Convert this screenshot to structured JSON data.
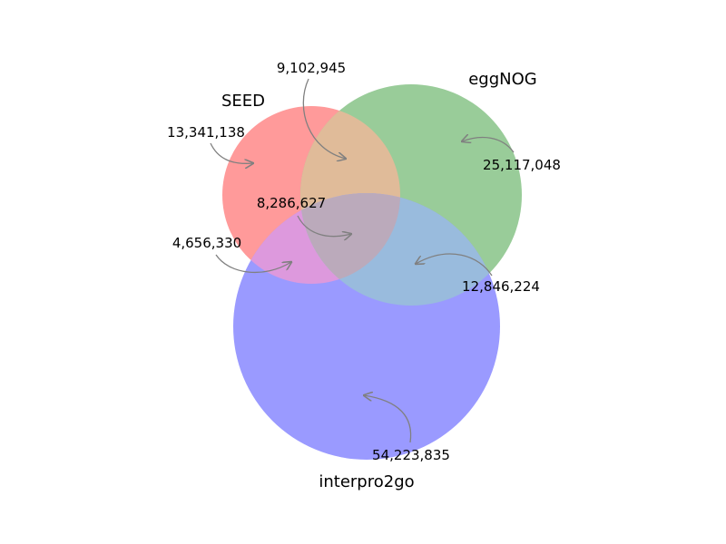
{
  "sets": [
    {
      "name": "SEED",
      "color": "#ff9a9a"
    },
    {
      "name": "eggNOG",
      "color": "#99cc99"
    },
    {
      "name": "interpro2go",
      "color": "#9a9aff"
    }
  ],
  "regions": {
    "seed_only": "13,341,138",
    "seed_eggnog": "9,102,945",
    "eggnog_only": "25,117,048",
    "all_three": "8,286,627",
    "seed_interpro": "4,656,330",
    "eggnog_interpro": "12,846,224",
    "interpro_only": "54,223,835"
  },
  "region_colors": {
    "seed_eggnog": "#e0bb99",
    "seed_interpro": "#dd99dd",
    "eggnog_interpro": "#99bbdd",
    "all_three": "#bbaabb"
  },
  "arrow_color": "#808080"
}
